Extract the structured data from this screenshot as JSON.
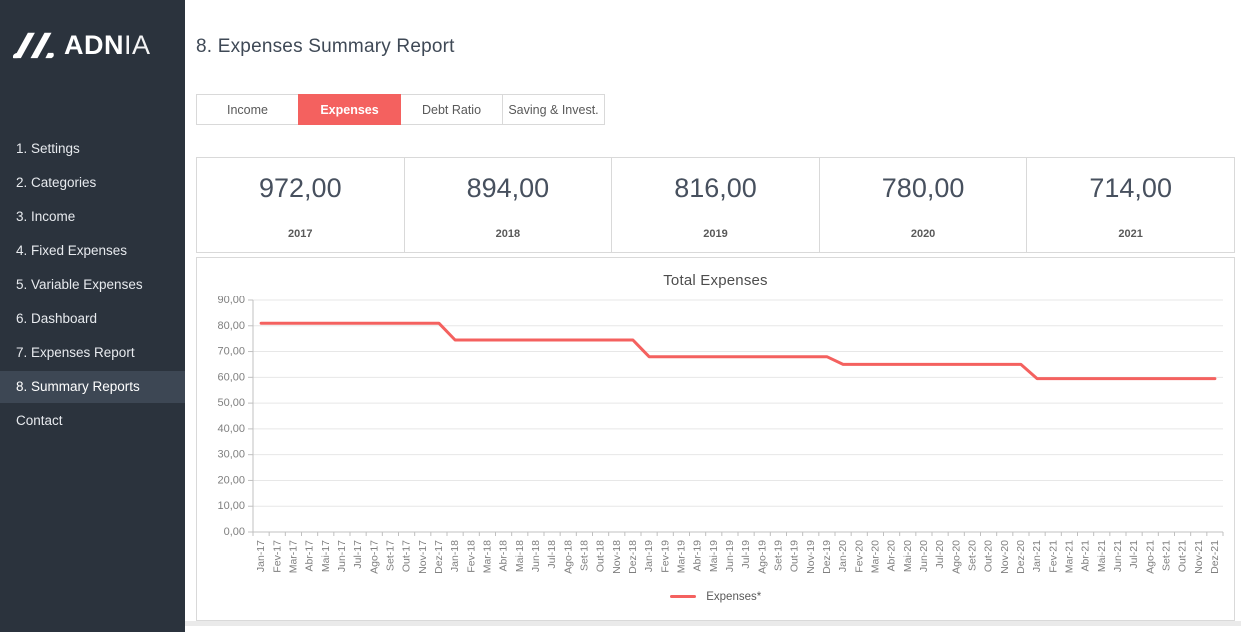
{
  "colors": {
    "accent": "#f4615f",
    "sidebar_bg": "#2b333d",
    "sidebar_active_bg": "#3d4754",
    "border": "#d9d9d9",
    "grid": "#e7e7e7",
    "axis": "#c0c0c0",
    "axis_text": "#7f7f7f"
  },
  "sidebar": {
    "logo": {
      "bold": "ADN",
      "light": "IA"
    },
    "items": [
      {
        "id": "settings",
        "label": "1. Settings",
        "active": false
      },
      {
        "id": "categories",
        "label": "2. Categories",
        "active": false
      },
      {
        "id": "income",
        "label": "3. Income",
        "active": false
      },
      {
        "id": "fixed-expenses",
        "label": "4. Fixed Expenses",
        "active": false
      },
      {
        "id": "variable-expenses",
        "label": "5. Variable Expenses",
        "active": false
      },
      {
        "id": "dashboard",
        "label": "6. Dashboard",
        "active": false
      },
      {
        "id": "expenses-report",
        "label": "7. Expenses Report",
        "active": false
      },
      {
        "id": "summary-reports",
        "label": "8. Summary Reports",
        "active": true
      },
      {
        "id": "contact",
        "label": "Contact",
        "active": false
      }
    ]
  },
  "header": {
    "title": "8. Expenses Summary Report"
  },
  "tabs": [
    {
      "id": "income",
      "label": "Income",
      "active": false
    },
    {
      "id": "expenses",
      "label": "Expenses",
      "active": true
    },
    {
      "id": "debt-ratio",
      "label": "Debt Ratio",
      "active": false
    },
    {
      "id": "saving-invest",
      "label": "Saving & Invest.",
      "active": false
    }
  ],
  "kpi_cards": [
    {
      "value": "972,00",
      "year": "2017"
    },
    {
      "value": "894,00",
      "year": "2018"
    },
    {
      "value": "816,00",
      "year": "2019"
    },
    {
      "value": "780,00",
      "year": "2020"
    },
    {
      "value": "714,00",
      "year": "2021"
    }
  ],
  "chart_data": {
    "type": "line",
    "title": "Total Expenses",
    "xlabel": "",
    "ylabel": "",
    "ylim": [
      0,
      90
    ],
    "ytick_step": 10,
    "ytick_labels": [
      "0,00",
      "10,00",
      "20,00",
      "30,00",
      "40,00",
      "50,00",
      "60,00",
      "70,00",
      "80,00",
      "90,00"
    ],
    "grid": true,
    "legend_position": "bottom",
    "x": [
      "Jan-17",
      "Fev-17",
      "Mar-17",
      "Abr-17",
      "Mai-17",
      "Jun-17",
      "Jul-17",
      "Ago-17",
      "Set-17",
      "Out-17",
      "Nov-17",
      "Dez-17",
      "Jan-18",
      "Fev-18",
      "Mar-18",
      "Abr-18",
      "Mai-18",
      "Jun-18",
      "Jul-18",
      "Ago-18",
      "Set-18",
      "Out-18",
      "Nov-18",
      "Dez-18",
      "Jan-19",
      "Fev-19",
      "Mar-19",
      "Abr-19",
      "Mai-19",
      "Jun-19",
      "Jul-19",
      "Ago-19",
      "Set-19",
      "Out-19",
      "Nov-19",
      "Dez-19",
      "Jan-20",
      "Fev-20",
      "Mar-20",
      "Abr-20",
      "Mai-20",
      "Jun-20",
      "Jul-20",
      "Ago-20",
      "Set-20",
      "Out-20",
      "Nov-20",
      "Dez-20",
      "Jan-21",
      "Fev-21",
      "Mar-21",
      "Abr-21",
      "Mai-21",
      "Jun-21",
      "Jul-21",
      "Ago-21",
      "Set-21",
      "Out-21",
      "Nov-21",
      "Dez-21"
    ],
    "series": [
      {
        "name": "Expenses*",
        "color": "#f4615f",
        "values": [
          81,
          81,
          81,
          81,
          81,
          81,
          81,
          81,
          81,
          81,
          81,
          81,
          74.5,
          74.5,
          74.5,
          74.5,
          74.5,
          74.5,
          74.5,
          74.5,
          74.5,
          74.5,
          74.5,
          74.5,
          68,
          68,
          68,
          68,
          68,
          68,
          68,
          68,
          68,
          68,
          68,
          68,
          65,
          65,
          65,
          65,
          65,
          65,
          65,
          65,
          65,
          65,
          65,
          65,
          59.5,
          59.5,
          59.5,
          59.5,
          59.5,
          59.5,
          59.5,
          59.5,
          59.5,
          59.5,
          59.5,
          59.5
        ]
      }
    ]
  }
}
